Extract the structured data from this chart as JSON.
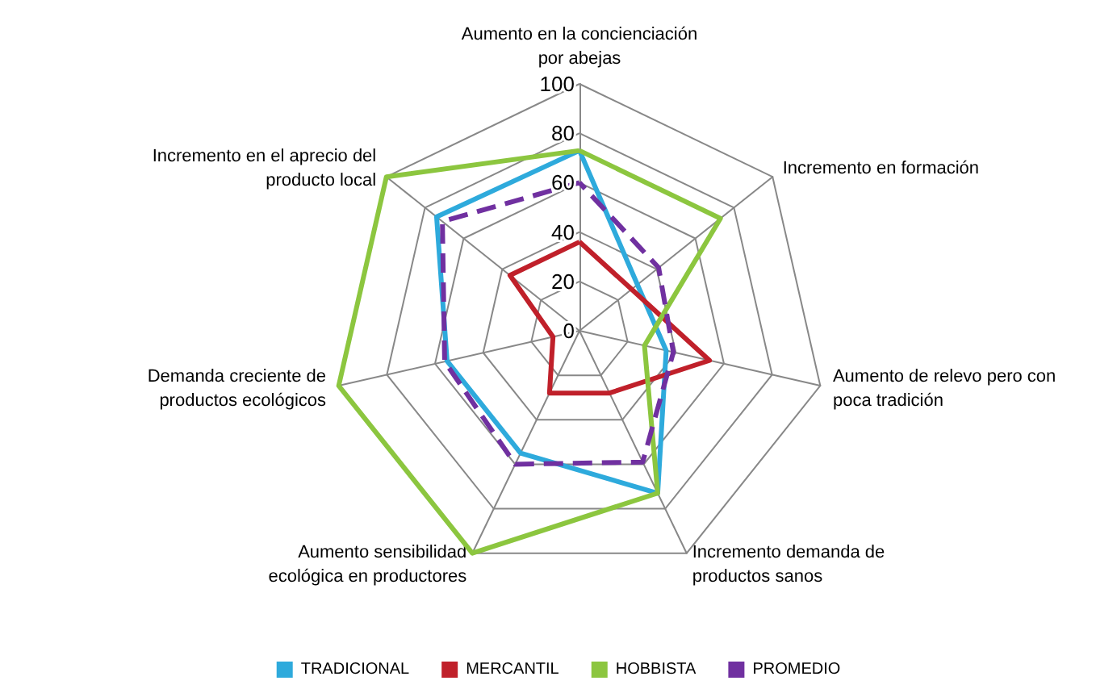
{
  "chart_data": {
    "type": "radar",
    "categories": [
      "Aumento en la concienciación por abejas",
      "Incremento en formación",
      "Aumento de relevo pero con poca tradición",
      "Incremento demanda de productos sanos",
      "Aumento sensibilidad ecológica en productores",
      "Demanda creciente de productos ecológicos",
      "Incremento en el aprecio del producto local"
    ],
    "series": [
      {
        "name": "TRADICIONAL",
        "color": "#2eaadc",
        "values": [
          73,
          30,
          36,
          73,
          55,
          55,
          74
        ]
      },
      {
        "name": "MERCANTIL",
        "color": "#c0202a",
        "values": [
          36,
          27,
          54,
          28,
          28,
          11,
          36
        ]
      },
      {
        "name": "HOBBISTA",
        "color": "#8cc63f",
        "values": [
          73,
          73,
          27,
          73,
          100,
          100,
          100
        ]
      },
      {
        "name": "PROMEDIO",
        "color": "#7030a0",
        "values": [
          60,
          41,
          39,
          59,
          60,
          56,
          71
        ],
        "line_style": "dashed"
      }
    ],
    "ylim": [
      0,
      100
    ],
    "yticks": [
      0,
      20,
      40,
      60,
      80,
      100
    ],
    "legend": "bottom",
    "marker": "none",
    "grid": true
  }
}
